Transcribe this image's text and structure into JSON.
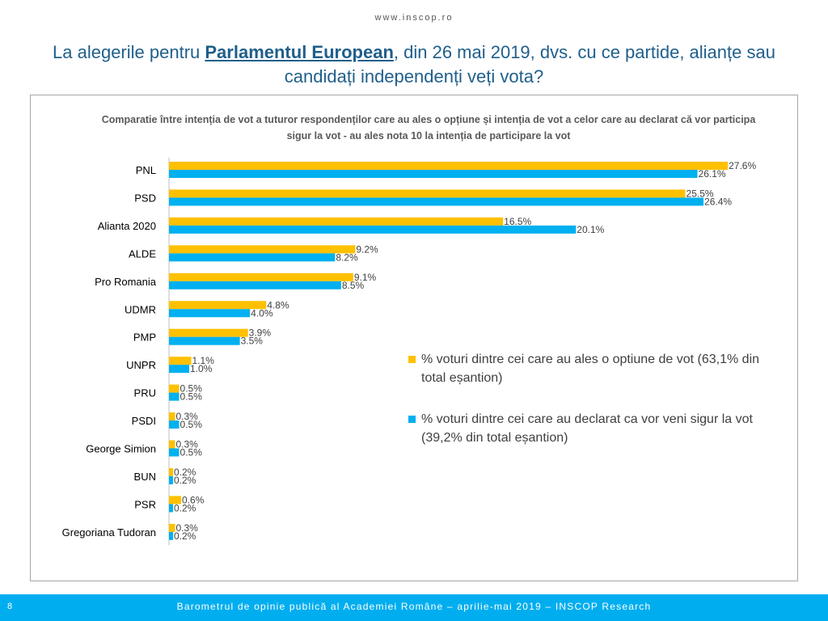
{
  "header": {
    "site_url": "www.inscop.ro",
    "title_part1": "La alegerile pentru ",
    "title_emphasis": "Parlamentul European",
    "title_part2": ", din 26 mai 2019, dvs. cu ce partide, alianțe sau candidați independenți veți vota?"
  },
  "chart_data": {
    "type": "bar",
    "orientation": "horizontal",
    "title": "Comparatie între intenția de vot a tuturor respondenților care au ales o opțiune și intenția de vot a celor care au declarat că vor participa sigur la vot - au ales nota 10 la intenția de participare la vot",
    "categories": [
      "PNL",
      "PSD",
      "Alianta 2020",
      "ALDE",
      "Pro Romania",
      "UDMR",
      "PMP",
      "UNPR",
      "PRU",
      "PSDI",
      "George Simion",
      "BUN",
      "PSR",
      "Gregoriana Tudoran"
    ],
    "series": [
      {
        "name": "% voturi dintre cei care au ales o optiune de vot (63,1% din total eșantion)",
        "color": "#ffc000",
        "values": [
          27.6,
          25.5,
          16.5,
          9.2,
          9.1,
          4.8,
          3.9,
          1.1,
          0.5,
          0.3,
          0.3,
          0.2,
          0.6,
          0.3
        ],
        "labels": [
          "27.6%",
          "25.5%",
          "16.5%",
          "9.2%",
          "9.1%",
          "4.8%",
          "3.9%",
          "1.1%",
          "0.5%",
          "0.3%",
          "0.3%",
          "0.2%",
          "0.6%",
          "0.3%"
        ]
      },
      {
        "name": "% voturi dintre cei care au declarat ca vor veni sigur la vot (39,2% din total eșantion)",
        "color": "#00b0f0",
        "values": [
          26.1,
          26.4,
          20.1,
          8.2,
          8.5,
          4.0,
          3.5,
          1.0,
          0.5,
          0.5,
          0.5,
          0.2,
          0.2,
          0.2
        ],
        "labels": [
          "26.1%",
          "26.4%",
          "20.1%",
          "8.2%",
          "8.5%",
          "4.0%",
          "3.5%",
          "1.0%",
          "0.5%",
          "0.5%",
          "0.5%",
          "0.2%",
          "0.2%",
          "0.2%"
        ]
      }
    ],
    "xlim": [
      0,
      30
    ],
    "grid": false,
    "legend_position": "right"
  },
  "footer": {
    "page_number": "8",
    "text": "Barometrul de opinie publică al Academiei Române – aprilie-mai 2019 – INSCOP Research"
  }
}
